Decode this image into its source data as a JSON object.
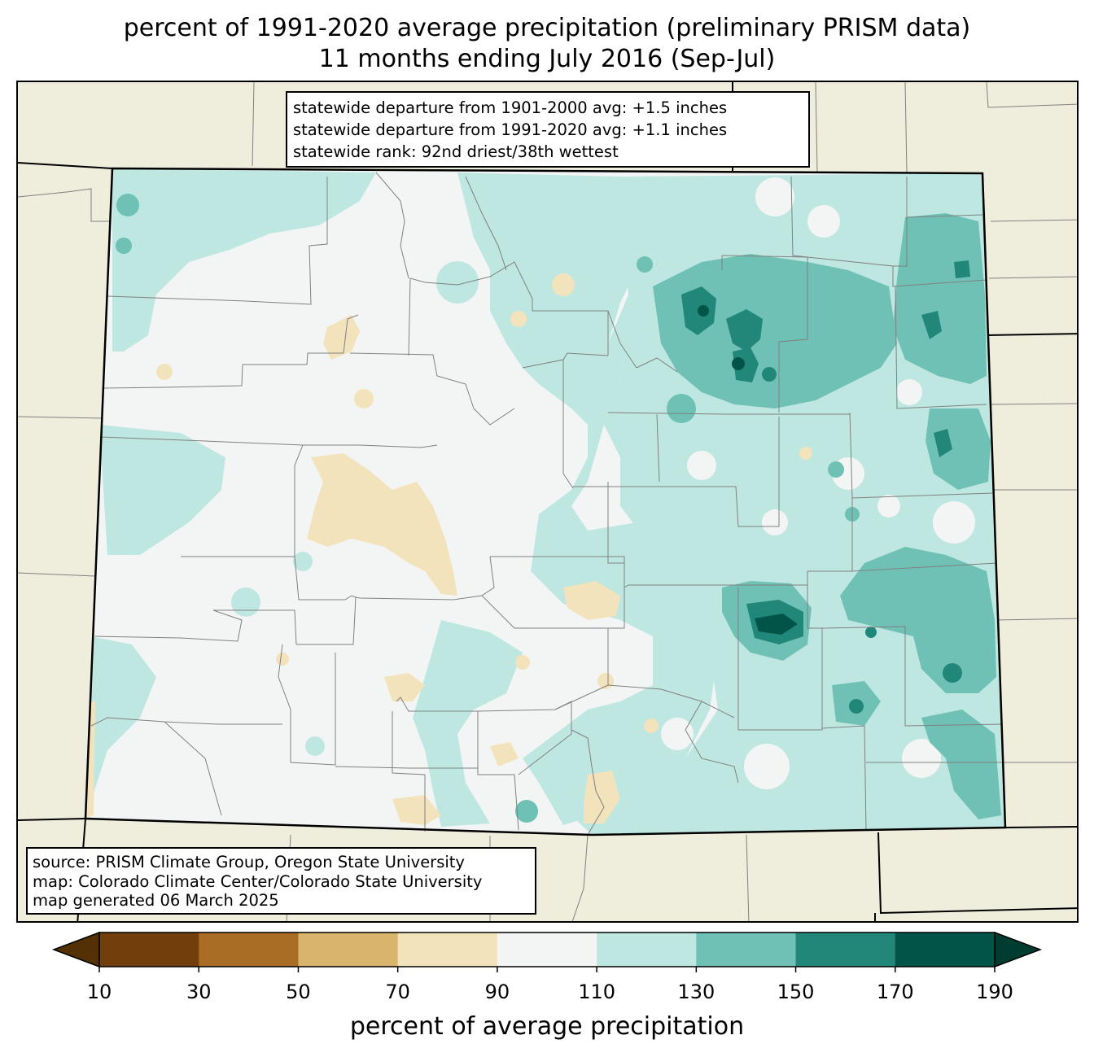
{
  "title": {
    "line1": "percent of 1991-2020 average precipitation (preliminary PRISM data)",
    "line2": "11 months ending July 2016 (Sep-Jul)"
  },
  "stats_box": {
    "line1": "statewide departure from 1901-2000 avg: +1.5 inches",
    "line2": "statewide departure from 1991-2020 avg: +1.1 inches",
    "line3": "statewide rank: 92nd driest/38th wettest"
  },
  "source_box": {
    "line1": "source: PRISM Climate Group, Oregon State University",
    "line2": "map: Colorado Climate Center/Colorado State University",
    "line3": "map generated 06 March 2025"
  },
  "colorbar": {
    "label": "percent of average precipitation",
    "ticks": [
      "10",
      "30",
      "50",
      "70",
      "90",
      "110",
      "130",
      "150",
      "170",
      "190"
    ],
    "under_color": "#543005",
    "over_color": "#003c30",
    "bins": [
      {
        "range": "10-30",
        "color": "#723e0b"
      },
      {
        "range": "30-50",
        "color": "#a96d25"
      },
      {
        "range": "50-70",
        "color": "#d8b46d"
      },
      {
        "range": "70-90",
        "color": "#f3e3bc"
      },
      {
        "range": "90-110",
        "color": "#f3f5f4"
      },
      {
        "range": "110-130",
        "color": "#bfe7e1"
      },
      {
        "range": "130-150",
        "color": "#6ec1b4"
      },
      {
        "range": "150-170",
        "color": "#218779"
      },
      {
        "range": "170-190",
        "color": "#005548"
      }
    ]
  },
  "colors": {
    "background_land": "#efeddb",
    "county_lines": "#808080",
    "state_border": "#000000"
  }
}
